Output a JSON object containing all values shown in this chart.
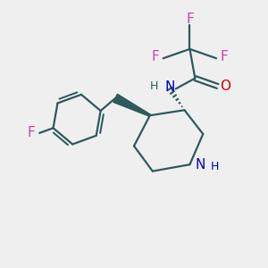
{
  "bg_color": "#efefef",
  "bond_color": "#2d5a5a",
  "N_color": "#0000cc",
  "O_color": "#cc0000",
  "F_color": "#cc44aa",
  "figsize": [
    3.0,
    3.0
  ],
  "dpi": 100,
  "lw": 1.6,
  "xlim": [
    0,
    10
  ],
  "ylim": [
    0,
    10
  ]
}
